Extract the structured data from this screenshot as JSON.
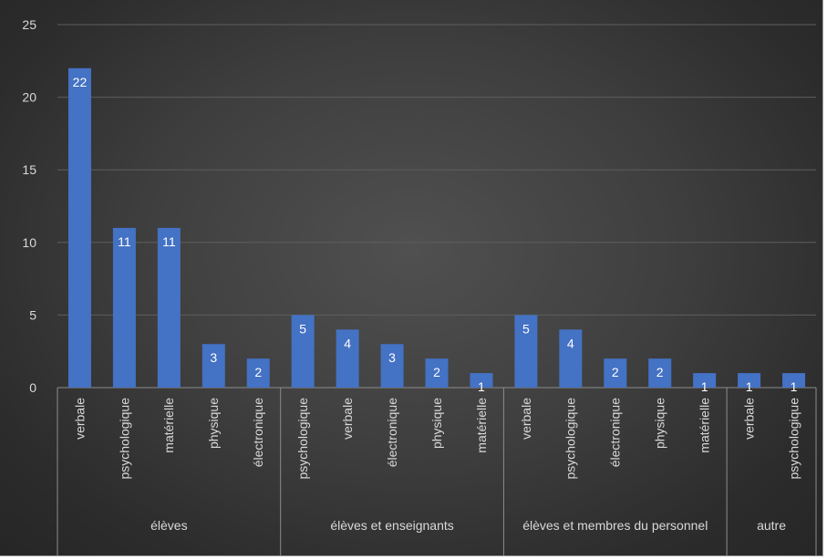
{
  "chart_data": {
    "type": "bar",
    "title": "",
    "xlabel": "",
    "ylabel": "",
    "ylim": [
      0,
      25
    ],
    "yticks": [
      0,
      5,
      10,
      15,
      20,
      25
    ],
    "grid": true,
    "bar_color": "#4472c4",
    "groups": [
      {
        "label": "élèves",
        "items": [
          {
            "category": "verbale",
            "value": 22
          },
          {
            "category": "psychologique",
            "value": 11
          },
          {
            "category": "matérielle",
            "value": 11
          },
          {
            "category": "physique",
            "value": 3
          },
          {
            "category": "électronique",
            "value": 2
          }
        ]
      },
      {
        "label": "élèves et enseignants",
        "items": [
          {
            "category": "psychologique",
            "value": 5
          },
          {
            "category": "verbale",
            "value": 4
          },
          {
            "category": "électronique",
            "value": 3
          },
          {
            "category": "physique",
            "value": 2
          },
          {
            "category": "matérielle",
            "value": 1
          }
        ]
      },
      {
        "label": "élèves et membres du personnel",
        "items": [
          {
            "category": "verbale",
            "value": 5
          },
          {
            "category": "psychologique",
            "value": 4
          },
          {
            "category": "électronique",
            "value": 2
          },
          {
            "category": "physique",
            "value": 2
          },
          {
            "category": "matérielle",
            "value": 1
          }
        ]
      },
      {
        "label": "autre",
        "items": [
          {
            "category": "verbale",
            "value": 1
          },
          {
            "category": "psychologique",
            "value": 1
          }
        ]
      }
    ]
  }
}
